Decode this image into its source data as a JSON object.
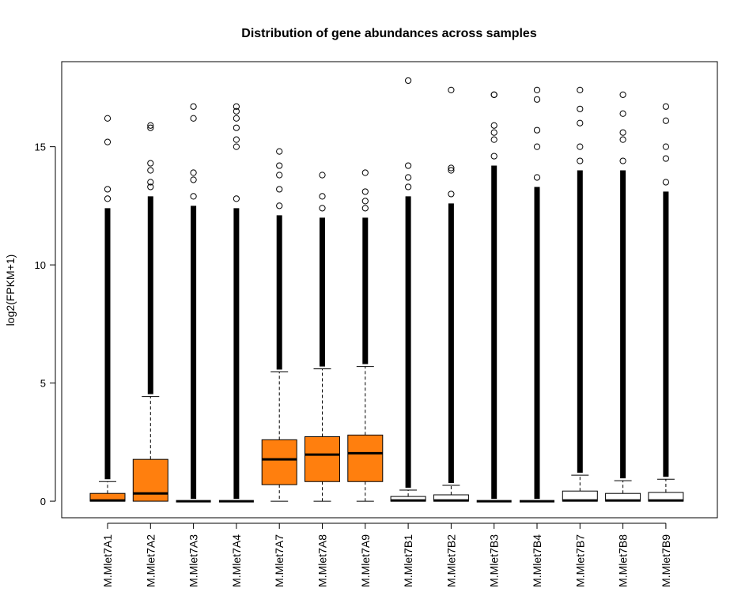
{
  "chart_data": {
    "type": "boxplot",
    "title": "Distribution of gene abundances across samples",
    "xlabel": "",
    "ylabel": "log2(FPKM+1)",
    "ylim": [
      -0.7,
      18.6
    ],
    "yticks": [
      0,
      5,
      10,
      15
    ],
    "grid": false,
    "legend": "none",
    "colors": {
      "orange": "#ff7f0e",
      "white": "#ffffff",
      "stroke": "#000000"
    },
    "samples": [
      {
        "name": "M.Mlet7A1",
        "color": "orange",
        "q1": 0,
        "median": 0.03,
        "q3": 0.33,
        "whisker_low": 0,
        "whisker_high": 0.83,
        "outlier_max": 16.2,
        "outliers": [
          15.2,
          13.2,
          12.8
        ]
      },
      {
        "name": "M.Mlet7A2",
        "color": "orange",
        "q1": 0,
        "median": 0.33,
        "q3": 1.77,
        "whisker_low": 0,
        "whisker_high": 4.43,
        "outlier_max": 15.9,
        "outliers": [
          15.8,
          14.3,
          14.0,
          13.5,
          13.3
        ]
      },
      {
        "name": "M.Mlet7A3",
        "color": "orange",
        "q1": 0,
        "median": 0,
        "q3": 0,
        "whisker_low": 0,
        "whisker_high": 0,
        "outlier_max": 16.7,
        "outliers": [
          16.2,
          13.9,
          13.6,
          12.9
        ]
      },
      {
        "name": "M.Mlet7A4",
        "color": "orange",
        "q1": 0,
        "median": 0,
        "q3": 0,
        "whisker_low": 0,
        "whisker_high": 0,
        "outlier_max": 16.7,
        "outliers": [
          16.5,
          16.2,
          15.8,
          15.3,
          15.0,
          12.8
        ]
      },
      {
        "name": "M.Mlet7A7",
        "color": "orange",
        "q1": 0.7,
        "median": 1.77,
        "q3": 2.6,
        "whisker_low": 0,
        "whisker_high": 5.47,
        "outlier_max": 14.8,
        "outliers": [
          14.2,
          13.8,
          13.2,
          12.5
        ]
      },
      {
        "name": "M.Mlet7A8",
        "color": "orange",
        "q1": 0.83,
        "median": 1.97,
        "q3": 2.73,
        "whisker_low": 0,
        "whisker_high": 5.6,
        "outlier_max": 13.8,
        "outliers": [
          12.9,
          12.4
        ]
      },
      {
        "name": "M.Mlet7A9",
        "color": "orange",
        "q1": 0.83,
        "median": 2.03,
        "q3": 2.8,
        "whisker_low": 0,
        "whisker_high": 5.7,
        "outlier_max": 13.9,
        "outliers": [
          13.1,
          12.7,
          12.4
        ]
      },
      {
        "name": "M.Mlet7B1",
        "color": "white",
        "q1": 0,
        "median": 0.03,
        "q3": 0.2,
        "whisker_low": 0,
        "whisker_high": 0.47,
        "outlier_max": 17.8,
        "outliers": [
          14.2,
          13.7,
          13.3
        ]
      },
      {
        "name": "M.Mlet7B2",
        "color": "white",
        "q1": 0,
        "median": 0.03,
        "q3": 0.27,
        "whisker_low": 0,
        "whisker_high": 0.67,
        "outlier_max": 17.4,
        "outliers": [
          14.1,
          14.0,
          13.0
        ]
      },
      {
        "name": "M.Mlet7B3",
        "color": "white",
        "q1": 0,
        "median": 0,
        "q3": 0,
        "whisker_low": 0,
        "whisker_high": 0,
        "outlier_max": 17.2,
        "outliers": [
          17.2,
          15.9,
          15.6,
          15.3,
          14.6
        ]
      },
      {
        "name": "M.Mlet7B4",
        "color": "white",
        "q1": 0,
        "median": 0,
        "q3": 0,
        "whisker_low": 0,
        "whisker_high": 0,
        "outlier_max": 17.4,
        "outliers": [
          17.0,
          15.7,
          15.0,
          13.7
        ]
      },
      {
        "name": "M.Mlet7B7",
        "color": "white",
        "q1": 0,
        "median": 0.03,
        "q3": 0.43,
        "whisker_low": 0,
        "whisker_high": 1.1,
        "outlier_max": 17.4,
        "outliers": [
          16.6,
          16.0,
          15.0,
          14.4
        ]
      },
      {
        "name": "M.Mlet7B8",
        "color": "white",
        "q1": 0,
        "median": 0.03,
        "q3": 0.33,
        "whisker_low": 0,
        "whisker_high": 0.87,
        "outlier_max": 17.2,
        "outliers": [
          16.4,
          15.6,
          15.3,
          14.4
        ]
      },
      {
        "name": "M.Mlet7B9",
        "color": "white",
        "q1": 0,
        "median": 0.03,
        "q3": 0.37,
        "whisker_low": 0,
        "whisker_high": 0.93,
        "outlier_max": 16.7,
        "outliers": [
          16.1,
          15.0,
          14.5,
          13.5
        ]
      }
    ]
  }
}
